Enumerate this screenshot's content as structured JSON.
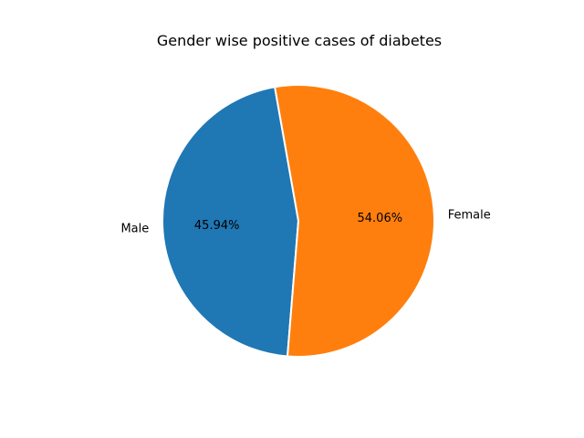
{
  "chart_data": {
    "type": "pie",
    "title": "Gender wise positive cases of diabetes",
    "labels": [
      "Male",
      "Female"
    ],
    "values": [
      45.94,
      54.06
    ],
    "value_labels": [
      "45.94%",
      "54.06%"
    ],
    "colors": [
      "#1f77b4",
      "#ff7f0e"
    ],
    "edge_color": "#ffffff",
    "start_angle_deg": 100,
    "legend": "none"
  }
}
